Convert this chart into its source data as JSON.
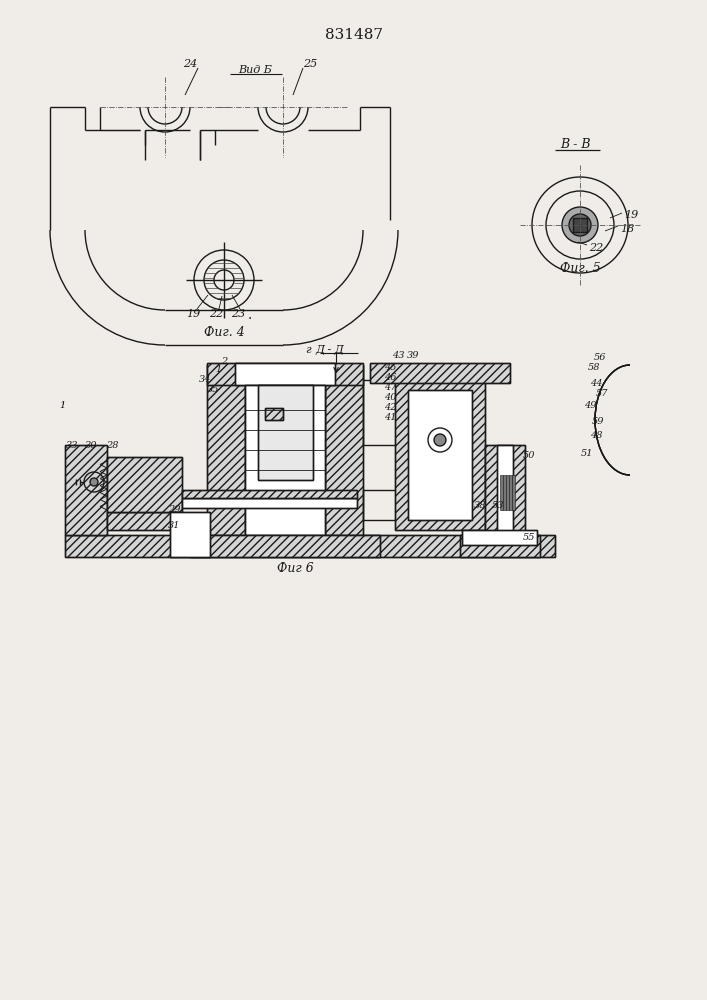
{
  "title": "831487",
  "fig4_label": "Фиг. 4",
  "fig5_label": "Фиг. 5",
  "fig6_label": "Фиг 6",
  "vid_b_label": "Вид Б",
  "vv_label": "В - В",
  "dd_label": "Д - Д",
  "bg": "#f0ede8",
  "lc": "#1a1a1a",
  "hc": "#1a1a1a",
  "lw": 1.0,
  "tlw": 0.6
}
